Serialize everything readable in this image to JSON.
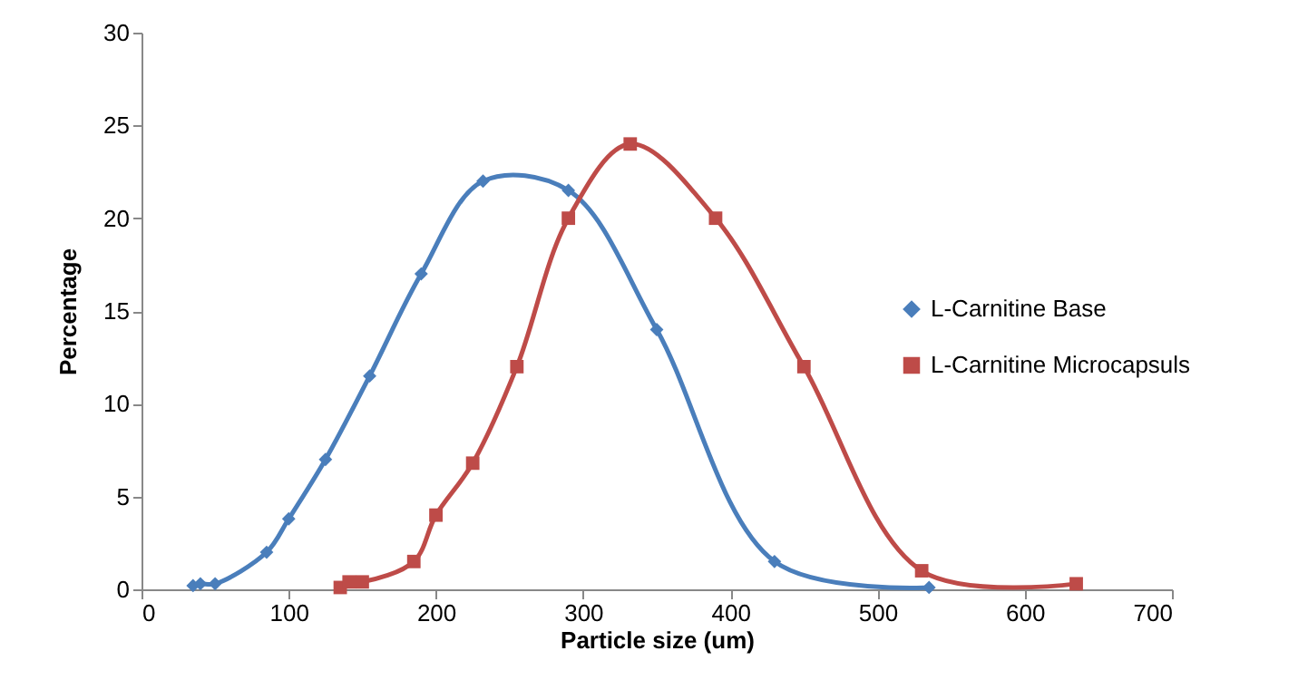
{
  "chart_data": {
    "type": "line",
    "xlabel": "Particle size (um)",
    "ylabel": "Percentage",
    "xlim": [
      0,
      700
    ],
    "xticks": [
      0,
      100,
      200,
      300,
      400,
      500,
      600,
      700
    ],
    "ylim": [
      0,
      30
    ],
    "yticks": [
      0,
      5,
      10,
      15,
      20,
      25,
      30
    ],
    "grid": false,
    "legend": "right",
    "line_style": "solid",
    "series": [
      {
        "name": "L-Carnitine Base",
        "color": "#4a7ebb",
        "marker": "diamond",
        "x": [
          35,
          40,
          50,
          85,
          100,
          125,
          155,
          190,
          232,
          290,
          350,
          430,
          535
        ],
        "values": [
          0.2,
          0.3,
          0.3,
          2,
          3.8,
          7,
          11.5,
          17,
          22,
          21.5,
          14,
          1.5,
          0.1
        ]
      },
      {
        "name": "L-Carnitine Microcapsuls",
        "color": "#be4b48",
        "marker": "square",
        "x": [
          135,
          141,
          150,
          185,
          200,
          225,
          255,
          290,
          332,
          390,
          450,
          530,
          635
        ],
        "values": [
          0.1,
          0.4,
          0.4,
          1.5,
          4,
          6.8,
          12,
          20,
          24,
          20,
          12,
          1,
          0.3
        ]
      }
    ]
  }
}
